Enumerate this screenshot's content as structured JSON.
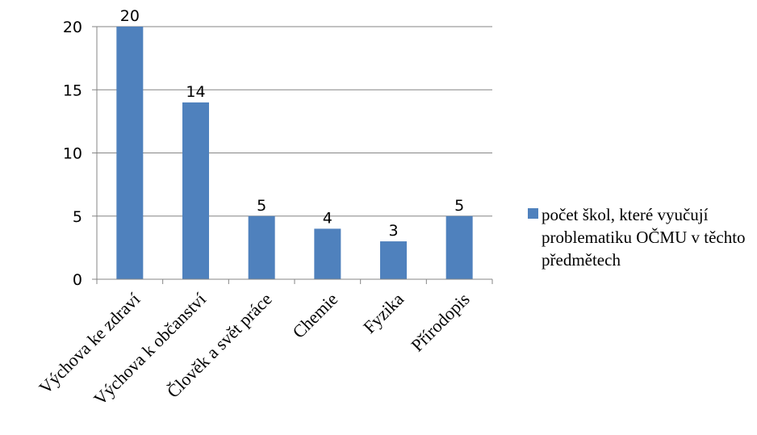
{
  "chart_data": {
    "type": "bar",
    "categories": [
      "Výchova ke zdraví",
      "Výchova k občanství",
      "Člověk a svět práce",
      "Chemie",
      "Fyzika",
      "Přírodopis"
    ],
    "series": [
      {
        "name": "počet škol, které vyučují problematiku OČMU v těchto předmětech",
        "values": [
          20,
          14,
          5,
          4,
          3,
          5
        ],
        "color": "#4f81bd"
      }
    ],
    "ylim": [
      0,
      20
    ],
    "yticks": [
      0,
      5,
      10,
      15,
      20
    ],
    "grid": true,
    "data_labels": true,
    "legend_position": "right"
  }
}
